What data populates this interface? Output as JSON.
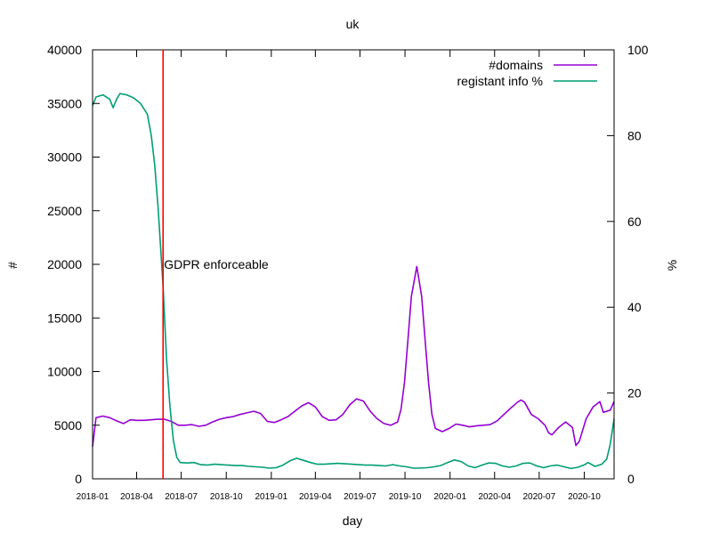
{
  "chart_data": {
    "type": "line",
    "title": "uk",
    "xlabel": "day",
    "ylabel": "#",
    "y2label": "%",
    "x_ticks": [
      "2018-01",
      "2018-04",
      "2018-07",
      "2018-10",
      "2019-01",
      "2019-04",
      "2019-07",
      "2019-10",
      "2020-01",
      "2020-04",
      "2020-07",
      "2020-10"
    ],
    "xlim": [
      "2018-01-01",
      "2020-12-01"
    ],
    "ylim": [
      0,
      40000
    ],
    "y_ticks": [
      0,
      5000,
      10000,
      15000,
      20000,
      25000,
      30000,
      35000,
      40000
    ],
    "y2lim": [
      0,
      100
    ],
    "y2_ticks": [
      0,
      20,
      40,
      60,
      80,
      100
    ],
    "grid": false,
    "legend_position": "top-right",
    "annotation": {
      "label": "GDPR enforceable",
      "date": "2018-05-25",
      "color": "#ff0000"
    },
    "series": [
      {
        "name": "#domains",
        "axis": "left",
        "color": "#9400d3",
        "points": [
          [
            "2018-01-01",
            3000
          ],
          [
            "2018-01-08",
            5700
          ],
          [
            "2018-01-22",
            5850
          ],
          [
            "2018-02-05",
            5700
          ],
          [
            "2018-02-19",
            5400
          ],
          [
            "2018-03-05",
            5150
          ],
          [
            "2018-03-19",
            5500
          ],
          [
            "2018-04-02",
            5450
          ],
          [
            "2018-04-16",
            5450
          ],
          [
            "2018-04-30",
            5500
          ],
          [
            "2018-05-14",
            5550
          ],
          [
            "2018-05-28",
            5550
          ],
          [
            "2018-06-11",
            5350
          ],
          [
            "2018-06-25",
            5000
          ],
          [
            "2018-07-09",
            5000
          ],
          [
            "2018-07-23",
            5050
          ],
          [
            "2018-08-06",
            4900
          ],
          [
            "2018-08-20",
            5000
          ],
          [
            "2018-09-03",
            5300
          ],
          [
            "2018-09-17",
            5550
          ],
          [
            "2018-10-01",
            5700
          ],
          [
            "2018-10-15",
            5800
          ],
          [
            "2018-10-29",
            6000
          ],
          [
            "2018-11-12",
            6150
          ],
          [
            "2018-11-26",
            6300
          ],
          [
            "2018-12-10",
            6100
          ],
          [
            "2018-12-24",
            5350
          ],
          [
            "2019-01-07",
            5250
          ],
          [
            "2019-01-21",
            5500
          ],
          [
            "2019-02-04",
            5800
          ],
          [
            "2019-02-18",
            6300
          ],
          [
            "2019-03-04",
            6800
          ],
          [
            "2019-03-18",
            7100
          ],
          [
            "2019-04-01",
            6700
          ],
          [
            "2019-04-15",
            5800
          ],
          [
            "2019-04-29",
            5450
          ],
          [
            "2019-05-13",
            5500
          ],
          [
            "2019-05-27",
            6000
          ],
          [
            "2019-06-10",
            6900
          ],
          [
            "2019-06-24",
            7450
          ],
          [
            "2019-07-08",
            7250
          ],
          [
            "2019-07-22",
            6300
          ],
          [
            "2019-08-05",
            5600
          ],
          [
            "2019-08-19",
            5150
          ],
          [
            "2019-09-02",
            5000
          ],
          [
            "2019-09-16",
            5300
          ],
          [
            "2019-09-23",
            6500
          ],
          [
            "2019-09-30",
            9000
          ],
          [
            "2019-10-07",
            13000
          ],
          [
            "2019-10-14",
            17000
          ],
          [
            "2019-10-25",
            19800
          ],
          [
            "2019-11-04",
            17000
          ],
          [
            "2019-11-11",
            13000
          ],
          [
            "2019-11-18",
            9000
          ],
          [
            "2019-11-25",
            6000
          ],
          [
            "2019-12-02",
            4700
          ],
          [
            "2019-12-16",
            4400
          ],
          [
            "2019-12-30",
            4700
          ],
          [
            "2020-01-13",
            5100
          ],
          [
            "2020-01-27",
            5000
          ],
          [
            "2020-02-10",
            4850
          ],
          [
            "2020-02-24",
            4950
          ],
          [
            "2020-03-09",
            5000
          ],
          [
            "2020-03-23",
            5050
          ],
          [
            "2020-04-06",
            5400
          ],
          [
            "2020-04-20",
            6000
          ],
          [
            "2020-05-04",
            6600
          ],
          [
            "2020-05-18",
            7150
          ],
          [
            "2020-05-25",
            7350
          ],
          [
            "2020-06-01",
            7150
          ],
          [
            "2020-06-15",
            6000
          ],
          [
            "2020-06-29",
            5600
          ],
          [
            "2020-07-13",
            5000
          ],
          [
            "2020-07-20",
            4300
          ],
          [
            "2020-07-27",
            4100
          ],
          [
            "2020-08-10",
            4800
          ],
          [
            "2020-08-24",
            5300
          ],
          [
            "2020-09-07",
            4800
          ],
          [
            "2020-09-14",
            3100
          ],
          [
            "2020-09-21",
            3500
          ],
          [
            "2020-10-05",
            5600
          ],
          [
            "2020-10-19",
            6700
          ],
          [
            "2020-11-02",
            7200
          ],
          [
            "2020-11-09",
            6200
          ],
          [
            "2020-11-23",
            6400
          ],
          [
            "2020-12-01",
            7200
          ]
        ]
      },
      {
        "name": "registant info %",
        "axis": "right",
        "color": "#009e73",
        "points": [
          [
            "2018-01-01",
            87
          ],
          [
            "2018-01-08",
            89
          ],
          [
            "2018-01-22",
            89.5
          ],
          [
            "2018-02-05",
            88.5
          ],
          [
            "2018-02-12",
            86.5
          ],
          [
            "2018-02-19",
            88.5
          ],
          [
            "2018-02-26",
            89.8
          ],
          [
            "2018-03-12",
            89.5
          ],
          [
            "2018-03-26",
            88.8
          ],
          [
            "2018-04-09",
            87.5
          ],
          [
            "2018-04-23",
            85
          ],
          [
            "2018-05-01",
            80
          ],
          [
            "2018-05-08",
            73
          ],
          [
            "2018-05-15",
            63
          ],
          [
            "2018-05-25",
            45
          ],
          [
            "2018-06-01",
            28
          ],
          [
            "2018-06-08",
            17
          ],
          [
            "2018-06-15",
            9
          ],
          [
            "2018-06-22",
            5
          ],
          [
            "2018-06-29",
            3.8
          ],
          [
            "2018-07-13",
            3.7
          ],
          [
            "2018-07-27",
            3.8
          ],
          [
            "2018-08-10",
            3.3
          ],
          [
            "2018-08-24",
            3.2
          ],
          [
            "2018-09-07",
            3.4
          ],
          [
            "2018-09-21",
            3.3
          ],
          [
            "2018-10-05",
            3.2
          ],
          [
            "2018-10-19",
            3.1
          ],
          [
            "2018-11-02",
            3.1
          ],
          [
            "2018-11-16",
            2.9
          ],
          [
            "2018-11-30",
            2.8
          ],
          [
            "2018-12-14",
            2.7
          ],
          [
            "2018-12-28",
            2.5
          ],
          [
            "2019-01-11",
            2.6
          ],
          [
            "2019-01-25",
            3.2
          ],
          [
            "2019-02-08",
            4.2
          ],
          [
            "2019-02-22",
            4.8
          ],
          [
            "2019-03-08",
            4.3
          ],
          [
            "2019-03-22",
            3.8
          ],
          [
            "2019-04-05",
            3.4
          ],
          [
            "2019-04-19",
            3.4
          ],
          [
            "2019-05-03",
            3.5
          ],
          [
            "2019-05-17",
            3.6
          ],
          [
            "2019-05-31",
            3.5
          ],
          [
            "2019-06-14",
            3.4
          ],
          [
            "2019-06-28",
            3.3
          ],
          [
            "2019-07-12",
            3.2
          ],
          [
            "2019-07-26",
            3.2
          ],
          [
            "2019-08-09",
            3.1
          ],
          [
            "2019-08-23",
            3.0
          ],
          [
            "2019-09-06",
            3.3
          ],
          [
            "2019-09-20",
            3.0
          ],
          [
            "2019-10-04",
            2.8
          ],
          [
            "2019-10-18",
            2.5
          ],
          [
            "2019-11-01",
            2.5
          ],
          [
            "2019-11-15",
            2.6
          ],
          [
            "2019-11-29",
            2.8
          ],
          [
            "2019-12-13",
            3.1
          ],
          [
            "2019-12-27",
            3.8
          ],
          [
            "2020-01-10",
            4.4
          ],
          [
            "2020-01-24",
            4.0
          ],
          [
            "2020-02-07",
            3.0
          ],
          [
            "2020-02-21",
            2.6
          ],
          [
            "2020-03-06",
            3.2
          ],
          [
            "2020-03-20",
            3.7
          ],
          [
            "2020-04-03",
            3.6
          ],
          [
            "2020-04-17",
            3.0
          ],
          [
            "2020-05-01",
            2.7
          ],
          [
            "2020-05-15",
            3.0
          ],
          [
            "2020-05-29",
            3.6
          ],
          [
            "2020-06-12",
            3.7
          ],
          [
            "2020-06-26",
            3.0
          ],
          [
            "2020-07-10",
            2.6
          ],
          [
            "2020-07-24",
            3.0
          ],
          [
            "2020-08-07",
            3.2
          ],
          [
            "2020-08-21",
            2.8
          ],
          [
            "2020-09-04",
            2.4
          ],
          [
            "2020-09-18",
            2.7
          ],
          [
            "2020-10-02",
            3.3
          ],
          [
            "2020-10-09",
            3.8
          ],
          [
            "2020-10-23",
            2.9
          ],
          [
            "2020-11-06",
            3.4
          ],
          [
            "2020-11-16",
            4.6
          ],
          [
            "2020-11-23",
            8
          ],
          [
            "2020-12-01",
            14
          ]
        ]
      }
    ]
  }
}
